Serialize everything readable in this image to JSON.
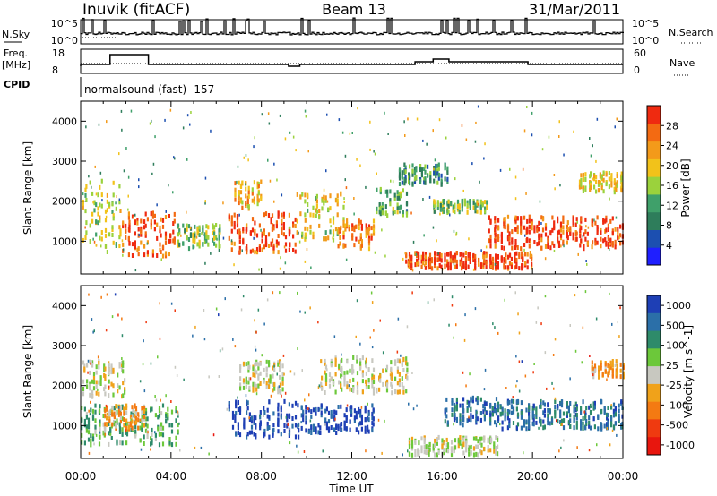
{
  "header": {
    "station": "Inuvik (fitACF)",
    "beam": "Beam 13",
    "date": "31/Mar/2011"
  },
  "status_panels": {
    "nsky_label": "N.Sky",
    "nsearch_label": "N.Search",
    "nsky_ticks": [
      "10^5",
      "10^0"
    ],
    "freq_label_line1": "Freq.",
    "freq_label_line2": "[MHz]",
    "freq_ticks": [
      "18",
      "8"
    ],
    "nave_label": "Nave",
    "nave_ticks": [
      "60",
      "0"
    ],
    "cpid_label": "CPID",
    "cpid_value": "normalsound (fast) -157"
  },
  "colors": {
    "power_scale": [
      "#1f1fff",
      "#1c4fb0",
      "#2e7d5b",
      "#3fa06a",
      "#9bd23c",
      "#f2c21a",
      "#f39a1a",
      "#f36a12",
      "#ef2a10"
    ],
    "velocity_scale": [
      "#1e3fb5",
      "#2b6fa8",
      "#2e8b6a",
      "#6cc83a",
      "#c8c8c0",
      "#f0a21a",
      "#f47a12",
      "#ef3a10",
      "#e8160e"
    ]
  },
  "chart_data": [
    {
      "type": "heatmap",
      "title": "Power",
      "ylabel": "Slant Range [km]",
      "yticks": [
        "4000",
        "3000",
        "2000",
        "1000"
      ],
      "ylim": [
        180,
        4500
      ],
      "colorbar_label": "Power [dB]",
      "colorbar_ticks": [
        "28",
        "24",
        "20",
        "16",
        "12",
        "8",
        "4"
      ],
      "colorbar_range": [
        0,
        30
      ],
      "bands": [
        {
          "t0": 0.0,
          "t1": 1.8,
          "r0": 700,
          "r1": 2500,
          "v": 16
        },
        {
          "t0": 1.8,
          "t1": 4.2,
          "r0": 600,
          "r1": 1700,
          "v": 26
        },
        {
          "t0": 4.2,
          "t1": 6.2,
          "r0": 800,
          "r1": 1400,
          "v": 14
        },
        {
          "t0": 6.5,
          "t1": 9.5,
          "r0": 700,
          "r1": 1700,
          "v": 27
        },
        {
          "t0": 6.8,
          "t1": 8.0,
          "r0": 1800,
          "r1": 2500,
          "v": 20
        },
        {
          "t0": 9.5,
          "t1": 11.6,
          "r0": 1000,
          "r1": 2200,
          "v": 18
        },
        {
          "t0": 11.3,
          "t1": 13.0,
          "r0": 800,
          "r1": 1500,
          "v": 24
        },
        {
          "t0": 13.0,
          "t1": 14.4,
          "r0": 1600,
          "r1": 2300,
          "v": 12
        },
        {
          "t0": 14.3,
          "t1": 20.0,
          "r0": 300,
          "r1": 700,
          "v": 27
        },
        {
          "t0": 15.5,
          "t1": 18.0,
          "r0": 1700,
          "r1": 2000,
          "v": 14
        },
        {
          "t0": 18.0,
          "t1": 24.0,
          "r0": 800,
          "r1": 1600,
          "v": 27
        },
        {
          "t0": 14.0,
          "t1": 16.2,
          "r0": 2400,
          "r1": 2900,
          "v": 10
        },
        {
          "t0": 22.0,
          "t1": 24.0,
          "r0": 2200,
          "r1": 2700,
          "v": 18
        }
      ]
    },
    {
      "type": "heatmap",
      "title": "Velocity",
      "ylabel": "Slant Range [km]",
      "yticks": [
        "4000",
        "3000",
        "2000",
        "1000"
      ],
      "ylim": [
        180,
        4500
      ],
      "colorbar_label": "Velocity [m s^-1]",
      "colorbar_ticks": [
        "1000",
        "500",
        "100",
        "25",
        "-25",
        "-100",
        "-500",
        "-1000"
      ],
      "colorbar_range": [
        -1000,
        1000
      ],
      "bands": [
        {
          "t0": 0.0,
          "t1": 2.0,
          "r0": 1700,
          "r1": 2600,
          "v": 0
        },
        {
          "t0": 0.0,
          "t1": 4.3,
          "r0": 500,
          "r1": 1500,
          "v": 300
        },
        {
          "t0": 1.0,
          "t1": 2.8,
          "r0": 900,
          "r1": 1500,
          "v": -300
        },
        {
          "t0": 6.5,
          "t1": 9.8,
          "r0": 700,
          "r1": 1600,
          "v": 900
        },
        {
          "t0": 7.0,
          "t1": 9.0,
          "r0": 1800,
          "r1": 2600,
          "v": 0
        },
        {
          "t0": 9.8,
          "t1": 13.0,
          "r0": 800,
          "r1": 1500,
          "v": 900
        },
        {
          "t0": 10.5,
          "t1": 14.5,
          "r0": 1800,
          "r1": 2700,
          "v": 0
        },
        {
          "t0": 14.5,
          "t1": 18.5,
          "r0": 250,
          "r1": 700,
          "v": 60
        },
        {
          "t0": 16.0,
          "t1": 18.5,
          "r0": 1000,
          "r1": 1700,
          "v": 700
        },
        {
          "t0": 18.5,
          "t1": 24.0,
          "r0": 900,
          "r1": 1600,
          "v": 600
        },
        {
          "t0": 22.5,
          "t1": 24.0,
          "r0": 2200,
          "r1": 2600,
          "v": -300
        }
      ]
    }
  ],
  "time_axis": {
    "ticks": [
      "00:00",
      "04:00",
      "08:00",
      "12:00",
      "16:00",
      "20:00",
      "00:00"
    ],
    "label": "Time UT",
    "range_hours": [
      0,
      24
    ]
  }
}
